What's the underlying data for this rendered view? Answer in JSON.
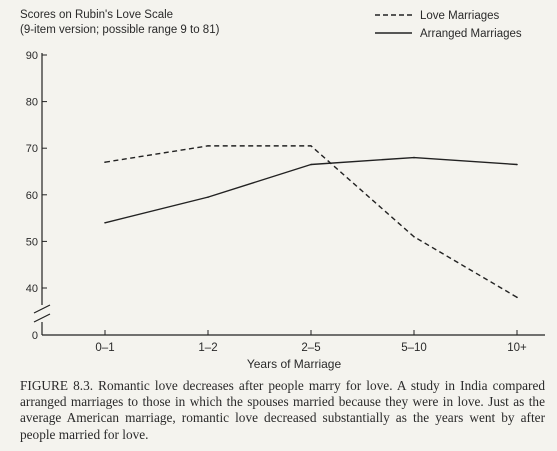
{
  "chart_data": {
    "type": "line",
    "title": "Scores on Rubin's Love Scale",
    "subtitle": "(9-item version; possible range 9 to 81)",
    "xlabel": "Years of Marriage",
    "categories": [
      "0–1",
      "1–2",
      "2–5",
      "5–10",
      "10+"
    ],
    "yticks": [
      0,
      40,
      50,
      60,
      70,
      80,
      90
    ],
    "ylim": [
      35,
      90
    ],
    "axis_break": true,
    "grid": false,
    "legend_position": "top-right",
    "series": [
      {
        "name": "Love Marriages",
        "style": "dashed",
        "values": [
          67,
          70.5,
          70.5,
          51,
          38
        ]
      },
      {
        "name": "Arranged Marriages",
        "style": "solid",
        "values": [
          54,
          59.5,
          66.5,
          68,
          66.5
        ]
      }
    ]
  },
  "caption": "FIGURE 8.3. Romantic love decreases after people marry for love. A study in India compared arranged marriages to those in which the spouses married because they were in love. Just as the average American marriage, romantic love decreased substantially as the years went by after people married for love."
}
